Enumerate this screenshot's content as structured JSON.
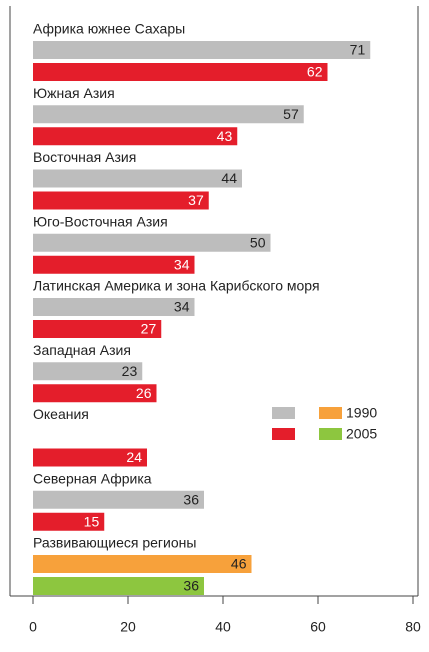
{
  "chart_data": {
    "type": "bar",
    "orientation": "horizontal",
    "categories": [
      "Африка южнее Сахары",
      "Южная Азия",
      "Восточная Азия",
      "Юго-Восточная Азия",
      "Латинская Америка и зона Карибского моря",
      "Западная Азия",
      "Океания",
      "Северная Африка",
      "Развивающиеся регионы"
    ],
    "series": [
      {
        "name": "1990",
        "colors": [
          "#bdbdbd",
          "#bdbdbd",
          "#bdbdbd",
          "#bdbdbd",
          "#bdbdbd",
          "#bdbdbd",
          "#bdbdbd",
          "#bdbdbd",
          "#f7a13b"
        ],
        "values": [
          71,
          57,
          44,
          50,
          34,
          23,
          null,
          36,
          46
        ]
      },
      {
        "name": "2005",
        "colors": [
          "#e41e2b",
          "#e41e2b",
          "#e41e2b",
          "#e41e2b",
          "#e41e2b",
          "#e41e2b",
          "#e41e2b",
          "#e41e2b",
          "#8dc63f"
        ],
        "values": [
          62,
          43,
          37,
          34,
          27,
          26,
          24,
          15,
          36
        ]
      }
    ],
    "xlim": [
      0,
      80
    ],
    "xticks": [
      0,
      20,
      40,
      60,
      80
    ],
    "grid": false
  }
}
